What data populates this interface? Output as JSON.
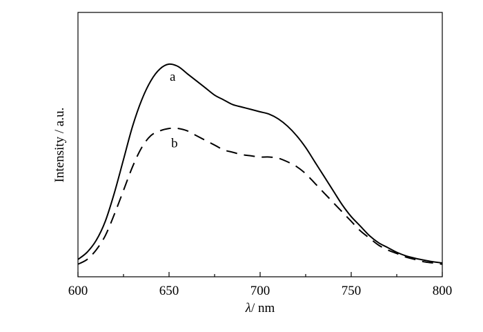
{
  "chart_data": {
    "type": "line",
    "title": "",
    "xlabel_symbol": "λ",
    "xlabel_unit": "/ nm",
    "ylabel": "Intensity / a.u.",
    "xlim": [
      600,
      800
    ],
    "ylim": [
      0,
      1
    ],
    "y_tick_labels_shown": false,
    "grid": false,
    "legend": "none",
    "x_ticks": [
      {
        "value": 600,
        "label": "600"
      },
      {
        "value": 650,
        "label": "650"
      },
      {
        "value": 700,
        "label": "700"
      },
      {
        "value": 750,
        "label": "750"
      },
      {
        "value": 800,
        "label": "800"
      }
    ],
    "x_minor_ticks": [
      625,
      675,
      725,
      775
    ],
    "series": [
      {
        "name": "a",
        "line_style": "solid",
        "color": "#000000",
        "label_position": [
          652,
          0.82
        ],
        "points": [
          [
            600,
            0.07
          ],
          [
            605,
            0.1
          ],
          [
            610,
            0.15
          ],
          [
            615,
            0.23
          ],
          [
            620,
            0.35
          ],
          [
            625,
            0.49
          ],
          [
            630,
            0.63
          ],
          [
            635,
            0.74
          ],
          [
            640,
            0.82
          ],
          [
            645,
            0.87
          ],
          [
            650,
            0.89
          ],
          [
            655,
            0.88
          ],
          [
            660,
            0.85
          ],
          [
            665,
            0.82
          ],
          [
            670,
            0.79
          ],
          [
            675,
            0.76
          ],
          [
            680,
            0.74
          ],
          [
            685,
            0.72
          ],
          [
            690,
            0.71
          ],
          [
            695,
            0.7
          ],
          [
            700,
            0.69
          ],
          [
            705,
            0.68
          ],
          [
            710,
            0.66
          ],
          [
            715,
            0.63
          ],
          [
            720,
            0.59
          ],
          [
            725,
            0.54
          ],
          [
            730,
            0.48
          ],
          [
            735,
            0.42
          ],
          [
            740,
            0.36
          ],
          [
            745,
            0.3
          ],
          [
            750,
            0.25
          ],
          [
            755,
            0.21
          ],
          [
            760,
            0.17
          ],
          [
            765,
            0.14
          ],
          [
            770,
            0.12
          ],
          [
            775,
            0.1
          ],
          [
            780,
            0.085
          ],
          [
            785,
            0.075
          ],
          [
            790,
            0.067
          ],
          [
            795,
            0.06
          ],
          [
            800,
            0.055
          ]
        ]
      },
      {
        "name": "b",
        "line_style": "dashed",
        "color": "#000000",
        "label_position": [
          653,
          0.54
        ],
        "points": [
          [
            600,
            0.05
          ],
          [
            605,
            0.07
          ],
          [
            610,
            0.11
          ],
          [
            615,
            0.17
          ],
          [
            620,
            0.26
          ],
          [
            625,
            0.36
          ],
          [
            630,
            0.46
          ],
          [
            635,
            0.54
          ],
          [
            640,
            0.59
          ],
          [
            645,
            0.61
          ],
          [
            650,
            0.62
          ],
          [
            655,
            0.62
          ],
          [
            660,
            0.61
          ],
          [
            665,
            0.59
          ],
          [
            670,
            0.57
          ],
          [
            675,
            0.55
          ],
          [
            680,
            0.53
          ],
          [
            685,
            0.52
          ],
          [
            690,
            0.51
          ],
          [
            695,
            0.505
          ],
          [
            700,
            0.5
          ],
          [
            705,
            0.5
          ],
          [
            710,
            0.495
          ],
          [
            715,
            0.48
          ],
          [
            720,
            0.46
          ],
          [
            725,
            0.43
          ],
          [
            730,
            0.39
          ],
          [
            735,
            0.35
          ],
          [
            740,
            0.31
          ],
          [
            745,
            0.27
          ],
          [
            750,
            0.23
          ],
          [
            755,
            0.19
          ],
          [
            760,
            0.16
          ],
          [
            765,
            0.13
          ],
          [
            770,
            0.11
          ],
          [
            775,
            0.095
          ],
          [
            780,
            0.08
          ],
          [
            785,
            0.07
          ],
          [
            790,
            0.06
          ],
          [
            795,
            0.055
          ],
          [
            800,
            0.05
          ]
        ]
      }
    ]
  }
}
